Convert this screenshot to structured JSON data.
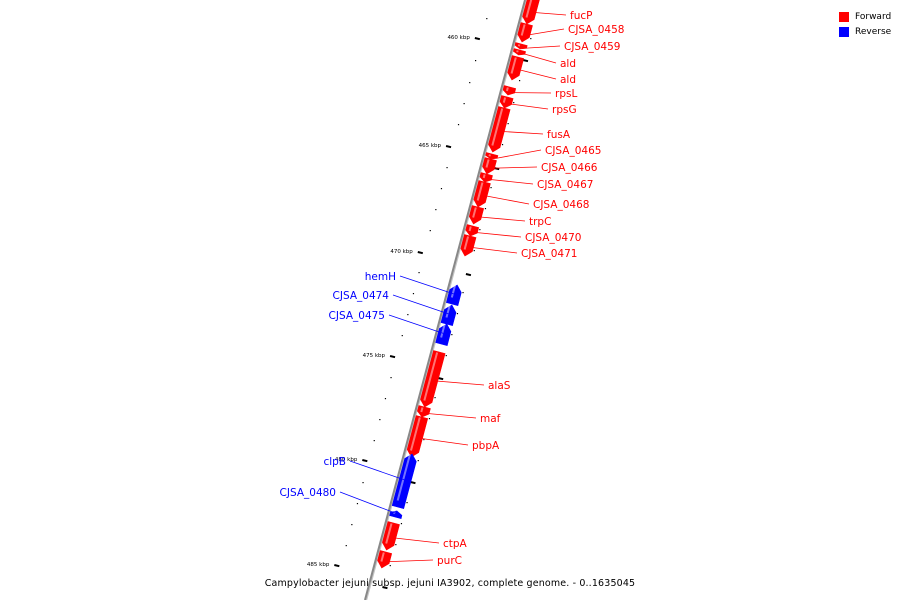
{
  "caption": "Campylobacter jejuni subsp. jejuni IA3902, complete genome. - 0..1635045",
  "legend": [
    {
      "label": "Forward",
      "color": "#ff0000"
    },
    {
      "label": "Reverse",
      "color": "#0000ff"
    }
  ],
  "colors": {
    "forward": "#ff0000",
    "reverse": "#0000ff",
    "backbone": "#888888"
  },
  "ticks": [
    {
      "label": "460 kbp"
    },
    {
      "label": "465 kbp"
    },
    {
      "label": "470 kbp"
    },
    {
      "label": "475 kbp"
    },
    {
      "label": "480 kbp"
    },
    {
      "label": "485 kbp"
    }
  ],
  "genes": [
    {
      "name": "fucP",
      "strand": "forward"
    },
    {
      "name": "CJSA_0458",
      "strand": "forward"
    },
    {
      "name": "CJSA_0459",
      "strand": "forward"
    },
    {
      "name": "ald",
      "strand": "forward"
    },
    {
      "name": "ald",
      "strand": "forward"
    },
    {
      "name": "rpsL",
      "strand": "forward"
    },
    {
      "name": "rpsG",
      "strand": "forward"
    },
    {
      "name": "fusA",
      "strand": "forward"
    },
    {
      "name": "CJSA_0465",
      "strand": "forward"
    },
    {
      "name": "CJSA_0466",
      "strand": "forward"
    },
    {
      "name": "CJSA_0467",
      "strand": "forward"
    },
    {
      "name": "CJSA_0468",
      "strand": "forward"
    },
    {
      "name": "trpC",
      "strand": "forward"
    },
    {
      "name": "CJSA_0470",
      "strand": "forward"
    },
    {
      "name": "CJSA_0471",
      "strand": "forward"
    },
    {
      "name": "hemH",
      "strand": "reverse"
    },
    {
      "name": "CJSA_0474",
      "strand": "reverse"
    },
    {
      "name": "CJSA_0475",
      "strand": "reverse"
    },
    {
      "name": "alaS",
      "strand": "forward"
    },
    {
      "name": "maf",
      "strand": "forward"
    },
    {
      "name": "pbpA",
      "strand": "forward"
    },
    {
      "name": "clpB",
      "strand": "reverse"
    },
    {
      "name": "CJSA_0480",
      "strand": "reverse"
    },
    {
      "name": "ctpA",
      "strand": "forward"
    },
    {
      "name": "purC",
      "strand": "forward"
    }
  ]
}
